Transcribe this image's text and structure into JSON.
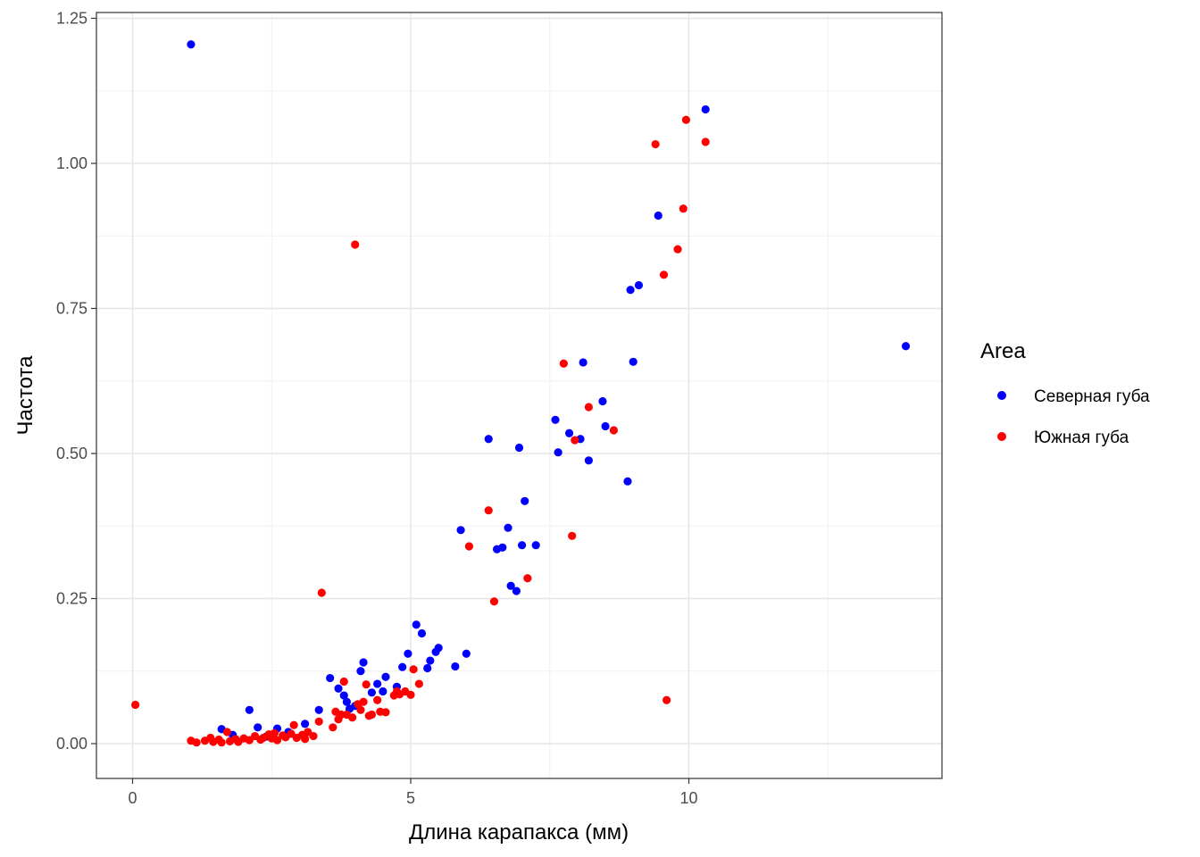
{
  "chart_data": {
    "type": "scatter",
    "xlabel": "Длина карапакса (мм)",
    "ylabel": "Частота",
    "xlim": [
      -0.65,
      14.55
    ],
    "ylim": [
      -0.06,
      1.26
    ],
    "x_ticks": [
      0,
      5,
      10
    ],
    "x_tick_labels": [
      "0",
      "5",
      "10"
    ],
    "y_ticks": [
      0,
      0.25,
      0.5,
      0.75,
      1.0,
      1.25
    ],
    "y_tick_labels": [
      "0.00",
      "0.25",
      "0.50",
      "0.75",
      "1.00",
      "1.25"
    ],
    "grid": true,
    "legend": {
      "title": "Area",
      "position": "right"
    },
    "series": [
      {
        "name": "Северная губа",
        "color": "#0000ff",
        "points": [
          [
            1.05,
            1.205
          ],
          [
            1.6,
            0.025
          ],
          [
            1.8,
            0.015
          ],
          [
            2.1,
            0.058
          ],
          [
            2.25,
            0.028
          ],
          [
            2.4,
            0.012
          ],
          [
            2.6,
            0.026
          ],
          [
            2.8,
            0.02
          ],
          [
            3.1,
            0.034
          ],
          [
            3.35,
            0.058
          ],
          [
            3.55,
            0.113
          ],
          [
            3.7,
            0.095
          ],
          [
            3.8,
            0.083
          ],
          [
            3.85,
            0.072
          ],
          [
            3.9,
            0.06
          ],
          [
            4.0,
            0.065
          ],
          [
            4.1,
            0.125
          ],
          [
            4.15,
            0.14
          ],
          [
            4.3,
            0.088
          ],
          [
            4.4,
            0.103
          ],
          [
            4.5,
            0.09
          ],
          [
            4.55,
            0.115
          ],
          [
            4.75,
            0.098
          ],
          [
            4.85,
            0.132
          ],
          [
            4.95,
            0.155
          ],
          [
            5.1,
            0.205
          ],
          [
            5.2,
            0.19
          ],
          [
            5.3,
            0.13
          ],
          [
            5.35,
            0.143
          ],
          [
            5.45,
            0.158
          ],
          [
            5.5,
            0.165
          ],
          [
            5.8,
            0.133
          ],
          [
            5.9,
            0.368
          ],
          [
            6.0,
            0.155
          ],
          [
            6.4,
            0.525
          ],
          [
            6.55,
            0.335
          ],
          [
            6.65,
            0.338
          ],
          [
            6.75,
            0.372
          ],
          [
            6.8,
            0.272
          ],
          [
            6.9,
            0.263
          ],
          [
            6.95,
            0.51
          ],
          [
            7.0,
            0.342
          ],
          [
            7.05,
            0.418
          ],
          [
            7.25,
            0.342
          ],
          [
            7.6,
            0.558
          ],
          [
            7.65,
            0.502
          ],
          [
            7.85,
            0.535
          ],
          [
            8.05,
            0.525
          ],
          [
            8.1,
            0.657
          ],
          [
            8.2,
            0.488
          ],
          [
            8.45,
            0.59
          ],
          [
            8.5,
            0.547
          ],
          [
            8.9,
            0.452
          ],
          [
            8.95,
            0.782
          ],
          [
            9.0,
            0.658
          ],
          [
            9.1,
            0.79
          ],
          [
            9.45,
            0.91
          ],
          [
            10.3,
            1.093
          ],
          [
            13.9,
            0.685
          ]
        ]
      },
      {
        "name": "Южная губа",
        "color": "#ff0000",
        "points": [
          [
            0.05,
            0.067
          ],
          [
            1.05,
            0.005
          ],
          [
            1.15,
            0.002
          ],
          [
            1.3,
            0.005
          ],
          [
            1.4,
            0.01
          ],
          [
            1.45,
            0.003
          ],
          [
            1.55,
            0.007
          ],
          [
            1.6,
            0.002
          ],
          [
            1.7,
            0.02
          ],
          [
            1.75,
            0.004
          ],
          [
            1.85,
            0.008
          ],
          [
            1.9,
            0.003
          ],
          [
            2.0,
            0.009
          ],
          [
            2.1,
            0.006
          ],
          [
            2.2,
            0.013
          ],
          [
            2.3,
            0.007
          ],
          [
            2.35,
            0.01
          ],
          [
            2.45,
            0.016
          ],
          [
            2.5,
            0.009
          ],
          [
            2.55,
            0.018
          ],
          [
            2.6,
            0.006
          ],
          [
            2.7,
            0.014
          ],
          [
            2.75,
            0.011
          ],
          [
            2.85,
            0.017
          ],
          [
            2.9,
            0.032
          ],
          [
            2.95,
            0.01
          ],
          [
            3.05,
            0.015
          ],
          [
            3.1,
            0.008
          ],
          [
            3.15,
            0.02
          ],
          [
            3.25,
            0.013
          ],
          [
            3.35,
            0.038
          ],
          [
            3.4,
            0.26
          ],
          [
            3.6,
            0.028
          ],
          [
            3.65,
            0.055
          ],
          [
            3.7,
            0.042
          ],
          [
            3.75,
            0.05
          ],
          [
            3.8,
            0.107
          ],
          [
            3.85,
            0.05
          ],
          [
            3.95,
            0.045
          ],
          [
            4.0,
            0.86
          ],
          [
            4.05,
            0.068
          ],
          [
            4.1,
            0.058
          ],
          [
            4.15,
            0.072
          ],
          [
            4.2,
            0.102
          ],
          [
            4.25,
            0.048
          ],
          [
            4.3,
            0.05
          ],
          [
            4.4,
            0.075
          ],
          [
            4.45,
            0.055
          ],
          [
            4.55,
            0.054
          ],
          [
            4.7,
            0.083
          ],
          [
            4.75,
            0.09
          ],
          [
            4.8,
            0.085
          ],
          [
            4.9,
            0.09
          ],
          [
            5.0,
            0.084
          ],
          [
            5.05,
            0.128
          ],
          [
            5.15,
            0.103
          ],
          [
            6.05,
            0.34
          ],
          [
            6.4,
            0.402
          ],
          [
            6.5,
            0.245
          ],
          [
            7.1,
            0.285
          ],
          [
            7.75,
            0.655
          ],
          [
            7.9,
            0.358
          ],
          [
            7.95,
            0.523
          ],
          [
            8.2,
            0.58
          ],
          [
            8.65,
            0.54
          ],
          [
            9.4,
            1.033
          ],
          [
            9.55,
            0.808
          ],
          [
            9.6,
            0.075
          ],
          [
            9.8,
            0.852
          ],
          [
            9.9,
            0.922
          ],
          [
            9.95,
            1.075
          ],
          [
            10.3,
            1.037
          ]
        ]
      }
    ]
  }
}
